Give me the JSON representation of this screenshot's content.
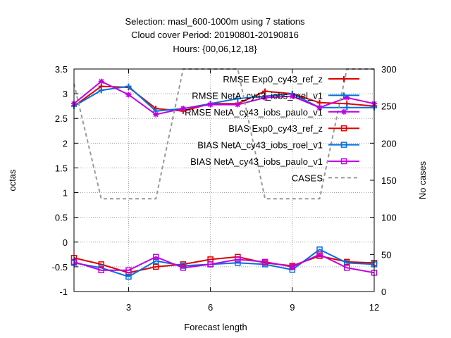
{
  "chart_data": {
    "type": "line",
    "title_lines": [
      "Selection: masl_600-1000m using     7 stations",
      "Cloud cover   Period: 20190801-20190816",
      "Hours: {00,06,12,18}"
    ],
    "xlabel": "Forecast length",
    "ylabel": "octas",
    "y2label": "No cases",
    "xlim": [
      1,
      12
    ],
    "ylim": [
      -1,
      3.5
    ],
    "y2lim": [
      0,
      300
    ],
    "xticks": [
      3,
      6,
      9,
      12
    ],
    "yticks": [
      -1,
      -0.5,
      0,
      0.5,
      1,
      1.5,
      2,
      2.5,
      3,
      3.5
    ],
    "y2ticks": [
      0,
      50,
      100,
      150,
      200,
      250,
      300
    ],
    "grid": true,
    "legend_position": "top-right",
    "x": [
      1,
      2,
      3,
      4,
      5,
      6,
      7,
      8,
      9,
      10,
      11,
      12
    ],
    "series": [
      {
        "name": "RMSE Exp0_cy43_ref_z",
        "color": "#e00000",
        "marker": "cross",
        "axis": "left",
        "values": [
          2.75,
          3.15,
          3.13,
          2.7,
          2.65,
          2.8,
          2.8,
          3.05,
          3.0,
          2.82,
          2.8,
          2.75
        ]
      },
      {
        "name": "RMSE NetA_cy43_iobs_roel_v1",
        "color": "#0070e0",
        "marker": "cross",
        "axis": "left",
        "values": [
          2.75,
          3.07,
          3.15,
          2.65,
          2.7,
          2.8,
          2.9,
          2.95,
          3.0,
          2.72,
          2.72,
          2.72
        ]
      },
      {
        "name": "RMSE NetA_cy43_iobs_paulo_v1",
        "color": "#c000e0",
        "marker": "star",
        "axis": "left",
        "values": [
          2.8,
          3.25,
          2.98,
          2.58,
          2.7,
          2.78,
          2.78,
          2.92,
          2.95,
          2.72,
          2.92,
          2.8
        ]
      },
      {
        "name": "BIAS Exp0_cy43_ref_z",
        "color": "#e00000",
        "marker": "square",
        "axis": "left",
        "values": [
          -0.32,
          -0.45,
          -0.62,
          -0.5,
          -0.45,
          -0.35,
          -0.3,
          -0.42,
          -0.48,
          -0.28,
          -0.4,
          -0.42
        ]
      },
      {
        "name": "BIAS NetA_cy43_iobs_roel_v1",
        "color": "#0070e0",
        "marker": "square",
        "axis": "left",
        "values": [
          -0.42,
          -0.52,
          -0.7,
          -0.38,
          -0.48,
          -0.45,
          -0.42,
          -0.45,
          -0.56,
          -0.15,
          -0.42,
          -0.45
        ]
      },
      {
        "name": "BIAS NetA_cy43_iobs_paulo_v1",
        "color": "#c000e0",
        "marker": "square",
        "axis": "left",
        "values": [
          -0.4,
          -0.57,
          -0.57,
          -0.3,
          -0.52,
          -0.45,
          -0.35,
          -0.4,
          -0.5,
          -0.25,
          -0.52,
          -0.62
        ]
      },
      {
        "name": "CASES",
        "color": "#999999",
        "marker": "none",
        "dash": true,
        "axis": "right",
        "values": [
          280,
          125,
          125,
          125,
          300,
          300,
          300,
          125,
          125,
          125,
          300,
          300
        ]
      }
    ]
  }
}
